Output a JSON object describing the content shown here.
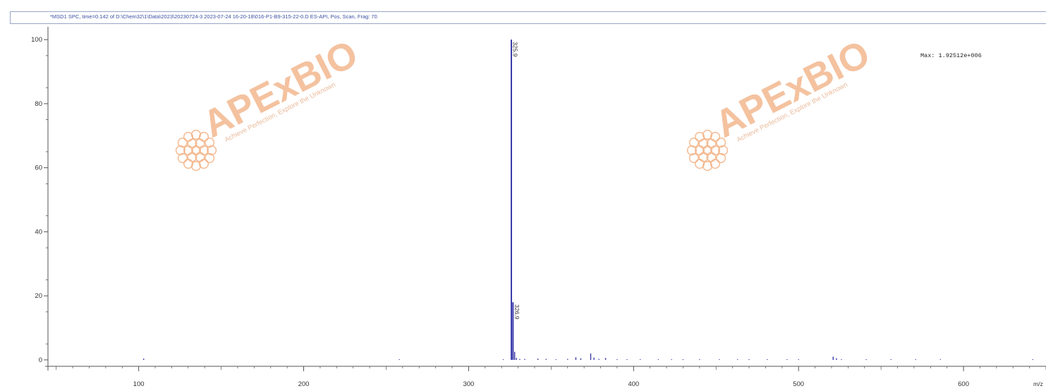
{
  "window": {
    "title": "*MSD1 SPC, time=0.142 of D:\\Chem32\\1\\Data\\2023\\20230724-3 2023-07-24 16-20-18\\016-P1-B9-315-22-0.D   ES-API, Pos, Scan, Frag: 70"
  },
  "chart_data": {
    "type": "bar",
    "xlabel": "m/z",
    "ylabel": "",
    "xlim": [
      45,
      650
    ],
    "ylim": [
      -2,
      104
    ],
    "xticks": [
      100,
      200,
      300,
      400,
      500,
      600
    ],
    "yticks": [
      0,
      20,
      40,
      60,
      80,
      100
    ],
    "grid": false,
    "annotation": "Max: 1.92512e+006",
    "series": [
      {
        "color": "#3a3aa8",
        "points": [
          {
            "x": 103,
            "y": 0.4
          },
          {
            "x": 258,
            "y": 0.2
          },
          {
            "x": 321,
            "y": 0.2
          },
          {
            "x": 325.9,
            "y": 100,
            "label": "325.9"
          },
          {
            "x": 326.9,
            "y": 18,
            "label": "326.9"
          },
          {
            "x": 327.9,
            "y": 2.5
          },
          {
            "x": 329,
            "y": 0.6
          },
          {
            "x": 331,
            "y": 0.3
          },
          {
            "x": 334,
            "y": 0.3
          },
          {
            "x": 342,
            "y": 0.4
          },
          {
            "x": 347,
            "y": 0.3
          },
          {
            "x": 353,
            "y": 0.2
          },
          {
            "x": 360,
            "y": 0.3
          },
          {
            "x": 365,
            "y": 0.8
          },
          {
            "x": 368,
            "y": 0.5
          },
          {
            "x": 374,
            "y": 2.0
          },
          {
            "x": 376,
            "y": 0.7
          },
          {
            "x": 379,
            "y": 0.3
          },
          {
            "x": 383,
            "y": 0.6
          },
          {
            "x": 390,
            "y": 0.2
          },
          {
            "x": 396,
            "y": 0.2
          },
          {
            "x": 404,
            "y": 0.2
          },
          {
            "x": 415,
            "y": 0.2
          },
          {
            "x": 423,
            "y": 0.2
          },
          {
            "x": 430,
            "y": 0.2
          },
          {
            "x": 440,
            "y": 0.2
          },
          {
            "x": 452,
            "y": 0.2
          },
          {
            "x": 463,
            "y": 0.2
          },
          {
            "x": 470,
            "y": 0.2
          },
          {
            "x": 481,
            "y": 0.2
          },
          {
            "x": 493,
            "y": 0.2
          },
          {
            "x": 500,
            "y": 0.2
          },
          {
            "x": 521,
            "y": 1.0
          },
          {
            "x": 523,
            "y": 0.5
          },
          {
            "x": 526,
            "y": 0.2
          },
          {
            "x": 541,
            "y": 0.2
          },
          {
            "x": 556,
            "y": 0.2
          },
          {
            "x": 571,
            "y": 0.2
          },
          {
            "x": 586,
            "y": 0.2
          },
          {
            "x": 642,
            "y": 0.2
          }
        ]
      }
    ]
  },
  "watermark": {
    "brand": "APExBIO",
    "tagline": "Achieve Perfection, Explore the Unknown",
    "brand_color": "#f2b488",
    "tagline_color": "#e9b898"
  }
}
